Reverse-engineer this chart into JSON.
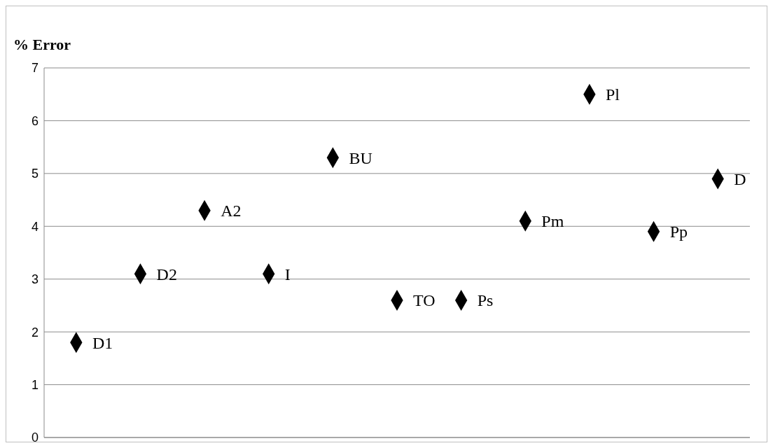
{
  "chart_data": {
    "type": "scatter",
    "ylabel": "% Error",
    "categories": [
      null,
      null,
      null,
      null,
      null,
      null,
      null,
      null,
      null,
      null,
      null
    ],
    "values": [
      1.8,
      3.1,
      4.3,
      3.1,
      5.3,
      2.6,
      2.6,
      4.1,
      6.5,
      3.9,
      4.9
    ],
    "value_labels": [
      "D1",
      "D2",
      "A2",
      "I",
      "BU",
      "TO",
      "Ps",
      "Pm",
      "Pl",
      "Pp",
      "D"
    ],
    "color": "#000000",
    "marker": "diamond",
    "ylim": [
      0,
      7
    ],
    "yticks": [
      0,
      1,
      2,
      3,
      4,
      5,
      6,
      7
    ],
    "grid": "y"
  }
}
